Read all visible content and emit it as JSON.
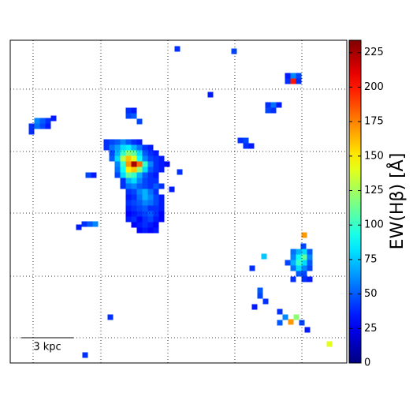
{
  "chart_data": {
    "type": "heatmap",
    "xlim": [
      0,
      427
    ],
    "ylim": [
      0,
      409
    ],
    "xticks": [
      29,
      115,
      200,
      285,
      370
    ],
    "yticks": [
      32,
      110,
      190,
      268,
      347
    ],
    "grid": true,
    "scale_bar": "3 kpc",
    "colorbar": {
      "label": "EW(Hβ) [Å]",
      "lim": [
        0,
        234
      ],
      "ticks": [
        0,
        25,
        50,
        75,
        100,
        125,
        150,
        175,
        200,
        225
      ],
      "colormap": "jet"
    },
    "cells": [
      [
        122,
        280,
        40
      ],
      [
        129,
        280,
        45
      ],
      [
        136,
        280,
        50
      ],
      [
        143,
        280,
        60
      ],
      [
        150,
        280,
        50
      ],
      [
        157,
        280,
        40
      ],
      [
        164,
        280,
        35
      ],
      [
        122,
        273,
        40
      ],
      [
        129,
        273,
        55
      ],
      [
        136,
        273,
        65
      ],
      [
        143,
        273,
        80
      ],
      [
        150,
        273,
        85
      ],
      [
        157,
        273,
        70
      ],
      [
        164,
        273,
        55
      ],
      [
        171,
        273,
        40
      ],
      [
        178,
        273,
        35
      ],
      [
        129,
        266,
        45
      ],
      [
        136,
        266,
        70
      ],
      [
        143,
        266,
        100
      ],
      [
        150,
        266,
        120
      ],
      [
        157,
        266,
        110
      ],
      [
        164,
        266,
        80
      ],
      [
        171,
        266,
        50
      ],
      [
        178,
        266,
        40
      ],
      [
        185,
        266,
        35
      ],
      [
        129,
        259,
        50
      ],
      [
        136,
        259,
        80
      ],
      [
        143,
        259,
        130
      ],
      [
        150,
        259,
        160
      ],
      [
        157,
        259,
        140
      ],
      [
        164,
        259,
        90
      ],
      [
        171,
        259,
        60
      ],
      [
        178,
        259,
        45
      ],
      [
        185,
        259,
        40
      ],
      [
        192,
        259,
        35
      ],
      [
        136,
        252,
        60
      ],
      [
        143,
        252,
        100
      ],
      [
        150,
        252,
        170
      ],
      [
        157,
        252,
        225
      ],
      [
        164,
        252,
        180
      ],
      [
        171,
        252,
        100
      ],
      [
        178,
        252,
        60
      ],
      [
        185,
        252,
        40
      ],
      [
        192,
        252,
        35
      ],
      [
        199,
        252,
        30
      ],
      [
        136,
        245,
        55
      ],
      [
        143,
        245,
        90
      ],
      [
        150,
        245,
        150
      ],
      [
        157,
        245,
        160
      ],
      [
        164,
        245,
        120
      ],
      [
        171,
        245,
        80
      ],
      [
        178,
        245,
        50
      ],
      [
        185,
        245,
        40
      ],
      [
        192,
        245,
        35
      ],
      [
        136,
        238,
        45
      ],
      [
        143,
        238,
        80
      ],
      [
        150,
        238,
        110
      ],
      [
        157,
        238,
        100
      ],
      [
        164,
        238,
        70
      ],
      [
        171,
        238,
        50
      ],
      [
        178,
        238,
        40
      ],
      [
        185,
        238,
        35
      ],
      [
        143,
        231,
        40
      ],
      [
        150,
        231,
        70
      ],
      [
        157,
        231,
        80
      ],
      [
        164,
        231,
        60
      ],
      [
        171,
        231,
        45
      ],
      [
        178,
        231,
        40
      ],
      [
        185,
        231,
        40
      ],
      [
        143,
        224,
        40
      ],
      [
        150,
        224,
        55
      ],
      [
        157,
        224,
        60
      ],
      [
        164,
        224,
        50
      ],
      [
        171,
        224,
        45
      ],
      [
        178,
        224,
        40
      ],
      [
        185,
        224,
        50
      ],
      [
        192,
        224,
        40
      ],
      [
        150,
        217,
        40
      ],
      [
        157,
        217,
        45
      ],
      [
        164,
        217,
        60
      ],
      [
        171,
        217,
        70
      ],
      [
        178,
        217,
        55
      ],
      [
        185,
        217,
        40
      ],
      [
        150,
        210,
        35
      ],
      [
        157,
        210,
        40
      ],
      [
        164,
        210,
        55
      ],
      [
        171,
        210,
        70
      ],
      [
        178,
        210,
        60
      ],
      [
        185,
        210,
        45
      ],
      [
        192,
        210,
        35
      ],
      [
        150,
        203,
        40
      ],
      [
        157,
        203,
        45
      ],
      [
        164,
        203,
        50
      ],
      [
        171,
        203,
        60
      ],
      [
        178,
        203,
        55
      ],
      [
        185,
        203,
        45
      ],
      [
        192,
        203,
        35
      ],
      [
        150,
        196,
        35
      ],
      [
        157,
        196,
        40
      ],
      [
        164,
        196,
        45
      ],
      [
        171,
        196,
        50
      ],
      [
        178,
        196,
        40
      ],
      [
        185,
        196,
        40
      ],
      [
        192,
        196,
        35
      ],
      [
        150,
        189,
        30
      ],
      [
        157,
        189,
        35
      ],
      [
        164,
        189,
        40
      ],
      [
        171,
        189,
        45
      ],
      [
        178,
        189,
        50
      ],
      [
        185,
        189,
        40
      ],
      [
        192,
        189,
        30
      ],
      [
        150,
        182,
        35
      ],
      [
        157,
        182,
        40
      ],
      [
        164,
        182,
        30
      ],
      [
        171,
        182,
        40
      ],
      [
        178,
        182,
        45
      ],
      [
        185,
        182,
        35
      ],
      [
        192,
        182,
        30
      ],
      [
        157,
        175,
        30
      ],
      [
        164,
        175,
        35
      ],
      [
        171,
        175,
        40
      ],
      [
        178,
        175,
        35
      ],
      [
        185,
        175,
        30
      ],
      [
        164,
        168,
        30
      ],
      [
        171,
        168,
        35
      ],
      [
        178,
        168,
        30
      ],
      [
        185,
        168,
        35
      ],
      [
        27,
        300,
        40
      ],
      [
        34,
        307,
        60
      ],
      [
        41,
        307,
        50
      ],
      [
        48,
        307,
        40
      ],
      [
        55,
        310,
        35
      ],
      [
        34,
        300,
        55
      ],
      [
        41,
        300,
        45
      ],
      [
        27,
        293,
        40
      ],
      [
        48,
        300,
        35
      ],
      [
        150,
        320,
        40
      ],
      [
        157,
        313,
        50
      ],
      [
        164,
        306,
        45
      ],
      [
        150,
        313,
        45
      ],
      [
        157,
        320,
        35
      ],
      [
        99,
        238,
        45
      ],
      [
        106,
        238,
        35
      ],
      [
        87,
        172,
        35
      ],
      [
        94,
        176,
        40
      ],
      [
        101,
        176,
        50
      ],
      [
        108,
        176,
        60
      ],
      [
        292,
        282,
        40
      ],
      [
        299,
        282,
        45
      ],
      [
        299,
        275,
        40
      ],
      [
        306,
        275,
        35
      ],
      [
        327,
        327,
        40
      ],
      [
        334,
        327,
        55
      ],
      [
        327,
        320,
        45
      ],
      [
        334,
        320,
        40
      ],
      [
        341,
        327,
        35
      ],
      [
        352,
        357,
        40
      ],
      [
        359,
        364,
        60
      ],
      [
        359,
        357,
        200
      ],
      [
        366,
        364,
        45
      ],
      [
        366,
        357,
        40
      ],
      [
        352,
        364,
        35
      ],
      [
        372,
        148,
        45
      ],
      [
        359,
        141,
        55
      ],
      [
        366,
        141,
        70
      ],
      [
        373,
        141,
        80
      ],
      [
        380,
        141,
        50
      ],
      [
        359,
        134,
        60
      ],
      [
        366,
        134,
        90
      ],
      [
        373,
        134,
        110
      ],
      [
        380,
        134,
        60
      ],
      [
        352,
        127,
        45
      ],
      [
        359,
        127,
        70
      ],
      [
        366,
        127,
        100
      ],
      [
        373,
        127,
        80
      ],
      [
        380,
        127,
        50
      ],
      [
        359,
        120,
        55
      ],
      [
        366,
        120,
        80
      ],
      [
        373,
        120,
        60
      ],
      [
        380,
        120,
        45
      ],
      [
        366,
        113,
        50
      ],
      [
        373,
        113,
        45
      ],
      [
        373,
        106,
        40
      ],
      [
        380,
        106,
        35
      ],
      [
        359,
        106,
        40
      ],
      [
        373,
        162,
        170
      ],
      [
        307,
        120,
        40
      ],
      [
        317,
        85,
        45
      ],
      [
        324,
        78,
        40
      ],
      [
        317,
        92,
        50
      ],
      [
        310,
        71,
        35
      ],
      [
        342,
        65,
        40
      ],
      [
        349,
        58,
        60
      ],
      [
        356,
        52,
        170
      ],
      [
        363,
        58,
        120
      ],
      [
        370,
        51,
        45
      ],
      [
        342,
        51,
        50
      ],
      [
        377,
        42,
        35
      ],
      [
        127,
        58,
        40
      ],
      [
        95,
        10,
        40
      ],
      [
        212,
        398,
        40
      ],
      [
        215,
        242,
        40
      ],
      [
        205,
        220,
        35
      ],
      [
        254,
        340,
        35
      ],
      [
        284,
        395,
        45
      ],
      [
        405,
        24,
        140
      ],
      [
        322,
        135,
        75
      ]
    ]
  }
}
